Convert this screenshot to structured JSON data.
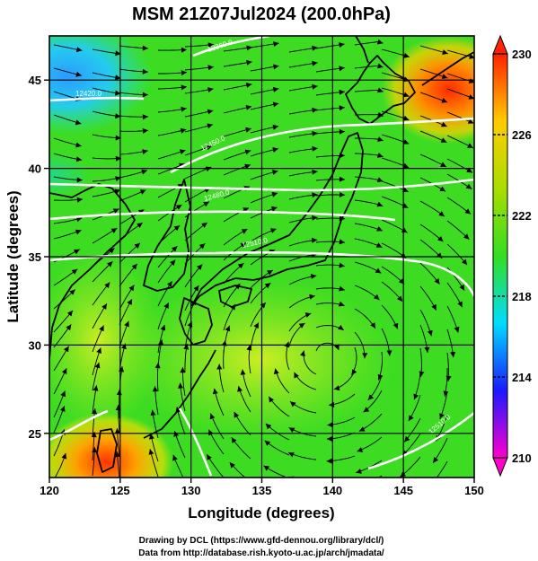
{
  "figure": {
    "title": "MSM 21Z07Jul2024 (200.0hPa)",
    "xlabel": "Longitude (degrees)",
    "ylabel": "Latitude  (degrees)",
    "credit_line1": "Drawing by DCL (https://www.gfd-dennou.org/library/dcl/)",
    "credit_line2": "Data from http://database.rish.kyoto-u.ac.jp/arch/jmadata/"
  },
  "map": {
    "lon_range": [
      120,
      150
    ],
    "lat_range": [
      22.5,
      47.5
    ],
    "lon_ticks": [
      120,
      125,
      130,
      135,
      140,
      145,
      150
    ],
    "lat_ticks": [
      25,
      30,
      35,
      40,
      45
    ],
    "grid": true,
    "contour_levels": [
      "12360.0",
      "12420.0",
      "12450.0",
      "12480.0",
      "12510.0"
    ],
    "high_center": {
      "lon": 139.5,
      "lat": 30.3
    },
    "colors": {
      "land_outline": "#000000",
      "contour": "#ffffff",
      "streamline": "#000000",
      "background_field": "#33dd22"
    }
  },
  "colorbar": {
    "min": 210,
    "max": 230,
    "tick_labels": [
      "230",
      "226",
      "222",
      "218",
      "214",
      "210"
    ],
    "stops": [
      "#ff00cc",
      "#1a1aff",
      "#00ddff",
      "#33dd22",
      "#aadd00",
      "#ffcc00",
      "#ff2200"
    ]
  }
}
